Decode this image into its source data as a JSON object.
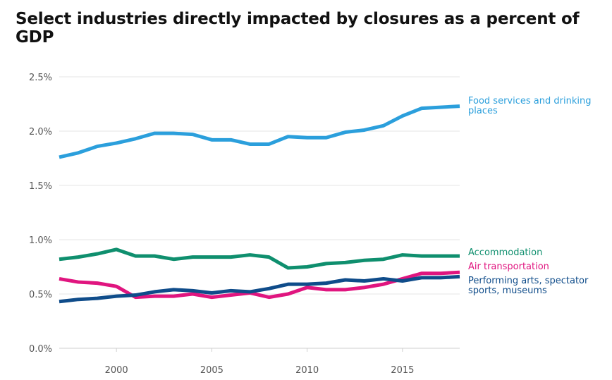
{
  "chart_data": {
    "type": "line",
    "title": "Select industries directly impacted by closures as a percent of GDP",
    "xlabel": "",
    "ylabel": "",
    "x": [
      1997,
      1998,
      1999,
      2000,
      2001,
      2002,
      2003,
      2004,
      2005,
      2006,
      2007,
      2008,
      2009,
      2010,
      2011,
      2012,
      2013,
      2014,
      2015,
      2016,
      2017,
      2018
    ],
    "xlim": [
      1997,
      2018
    ],
    "ylim": [
      0,
      2.5
    ],
    "x_ticks": [
      2000,
      2005,
      2010,
      2015
    ],
    "y_ticks": [
      "0.0%",
      "0.5%",
      "1.0%",
      "1.5%",
      "2.0%",
      "2.5%"
    ],
    "y_tick_values": [
      0,
      0.5,
      1.0,
      1.5,
      2.0,
      2.5
    ],
    "grid": "horizontal",
    "legend": "direct labels at right end of lines",
    "series": [
      {
        "name": "Food services and drinking places",
        "label_lines": [
          "Food services and drinking",
          "places"
        ],
        "color": "#2b9fdc",
        "values": [
          1.76,
          1.8,
          1.86,
          1.89,
          1.93,
          1.98,
          1.98,
          1.97,
          1.92,
          1.92,
          1.88,
          1.88,
          1.95,
          1.94,
          1.94,
          1.99,
          2.01,
          2.05,
          2.14,
          2.21,
          2.22,
          2.23
        ]
      },
      {
        "name": "Accommodation",
        "label_lines": [
          "Accommodation"
        ],
        "color": "#0f8f6e",
        "values": [
          0.82,
          0.84,
          0.87,
          0.91,
          0.85,
          0.85,
          0.82,
          0.84,
          0.84,
          0.84,
          0.86,
          0.84,
          0.74,
          0.75,
          0.78,
          0.79,
          0.81,
          0.82,
          0.86,
          0.85,
          0.85,
          0.85
        ]
      },
      {
        "name": "Air transportation",
        "label_lines": [
          "Air transportation"
        ],
        "color": "#e0157f",
        "values": [
          0.64,
          0.61,
          0.6,
          0.57,
          0.47,
          0.48,
          0.48,
          0.5,
          0.47,
          0.49,
          0.51,
          0.47,
          0.5,
          0.56,
          0.54,
          0.54,
          0.56,
          0.59,
          0.64,
          0.69,
          0.69,
          0.7
        ]
      },
      {
        "name": "Performing arts, spectator sports, museums",
        "label_lines": [
          "Performing arts, spectator",
          "sports, museums"
        ],
        "color": "#0f4c8a",
        "values": [
          0.43,
          0.45,
          0.46,
          0.48,
          0.49,
          0.52,
          0.54,
          0.53,
          0.51,
          0.53,
          0.52,
          0.55,
          0.59,
          0.59,
          0.6,
          0.63,
          0.62,
          0.64,
          0.62,
          0.65,
          0.65,
          0.66
        ]
      }
    ]
  }
}
